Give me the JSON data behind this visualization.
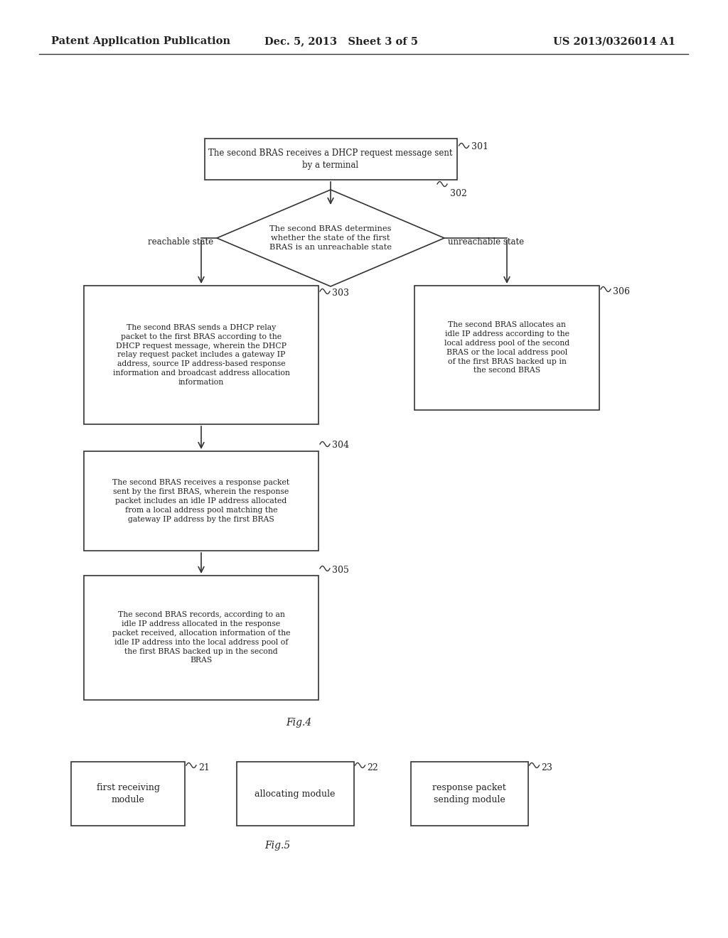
{
  "background_color": "#ffffff",
  "header_left": "Patent Application Publication",
  "header_center": "Dec. 5, 2013   Sheet 3 of 5",
  "header_right": "US 2013/0326014 A1",
  "header_fontsize": 10.5,
  "fig4_label": "Fig.4",
  "fig5_label": "Fig.5",
  "box301_text": "The second BRAS receives a DHCP request message sent\nby a terminal",
  "box301_label": "301",
  "diamond302_text": "The second BRAS determines\nwhether the state of the first\nBRAS is an unreachable state",
  "diamond302_label": "302",
  "label_reachable": "reachable state",
  "label_unreachable": "unreachable state",
  "box303_text": "The second BRAS sends a DHCP relay\npacket to the first BRAS according to the\nDHCP request message, wherein the DHCP\nrelay request packet includes a gateway IP\naddress, source IP address-based response\ninformation and broadcast address allocation\ninformation",
  "box303_label": "303",
  "box304_text": "The second BRAS receives a response packet\nsent by the first BRAS, wherein the response\npacket includes an idle IP address allocated\nfrom a local address pool matching the\ngateway IP address by the first BRAS",
  "box304_label": "304",
  "box305_text": "The second BRAS records, according to an\nidle IP address allocated in the response\npacket received, allocation information of the\nidle IP address into the local address pool of\nthe first BRAS backed up in the second\nBRAS",
  "box305_label": "305",
  "box306_text": "The second BRAS allocates an\nidle IP address according to the\nlocal address pool of the second\nBRAS or the local address pool\nof the first BRAS backed up in\nthe second BRAS",
  "box306_label": "306",
  "fig5_box21_text": "first receiving\nmodule",
  "fig5_box21_label": "21",
  "fig5_box22_text": "allocating module",
  "fig5_box22_label": "22",
  "fig5_box23_text": "response packet\nsending module",
  "fig5_box23_label": "23",
  "line_color": "#333333",
  "text_color": "#222222"
}
